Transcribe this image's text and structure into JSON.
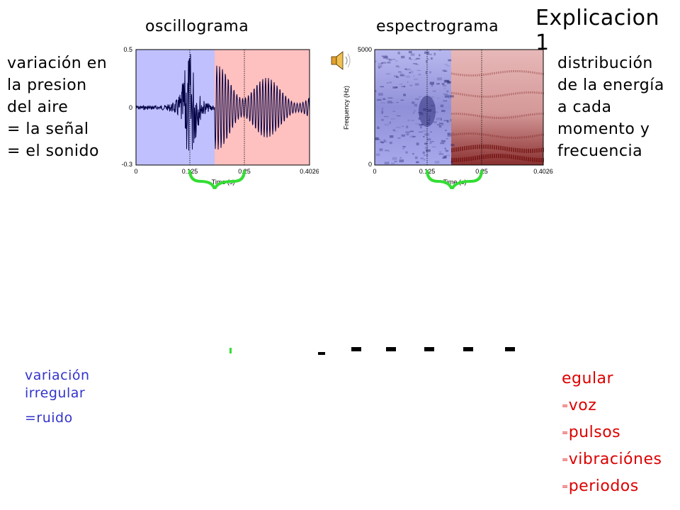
{
  "slide": {
    "title": "Explicacion 1",
    "oscillogram_label": "oscillograma",
    "spectrogram_label": "espectrograma",
    "left_note": [
      "variación en",
      "la presion",
      "del aire",
      "= la señal",
      "= el sonido"
    ],
    "right_note": [
      "distribución",
      "de la energía",
      "a cada",
      "momento y",
      "frecuencia"
    ],
    "speaker_icon": "speaker-icon",
    "blue_note": [
      "variación",
      "irregular",
      "=ruido"
    ],
    "red_note": {
      "first": "egular",
      "items": [
        "voz",
        "pulsos",
        "vibraciónes",
        "periodos"
      ],
      "prefix": "="
    }
  },
  "oscillogram": {
    "y_max": "0.5",
    "y_zero": "0",
    "y_min": "-0.3",
    "x_ticks": [
      "0",
      "0.125",
      "0.25",
      "0.4026"
    ],
    "x_label": "Time (s)",
    "regions": [
      {
        "name": "ruido",
        "color": "#c0c0ff"
      },
      {
        "name": "voz",
        "color": "#ffc0c0"
      }
    ]
  },
  "spectrogram": {
    "y_max": "5000",
    "y_min": "0",
    "y_label": "Frequency (Hz)",
    "x_ticks": [
      "0",
      "0.125",
      "0.25",
      "0.4026"
    ],
    "x_label": "Time (s)"
  },
  "colors": {
    "brace": "#33dd33",
    "waveform": "#000044",
    "spectro_blue": "#1a1a66",
    "spectro_red": "#660000"
  }
}
